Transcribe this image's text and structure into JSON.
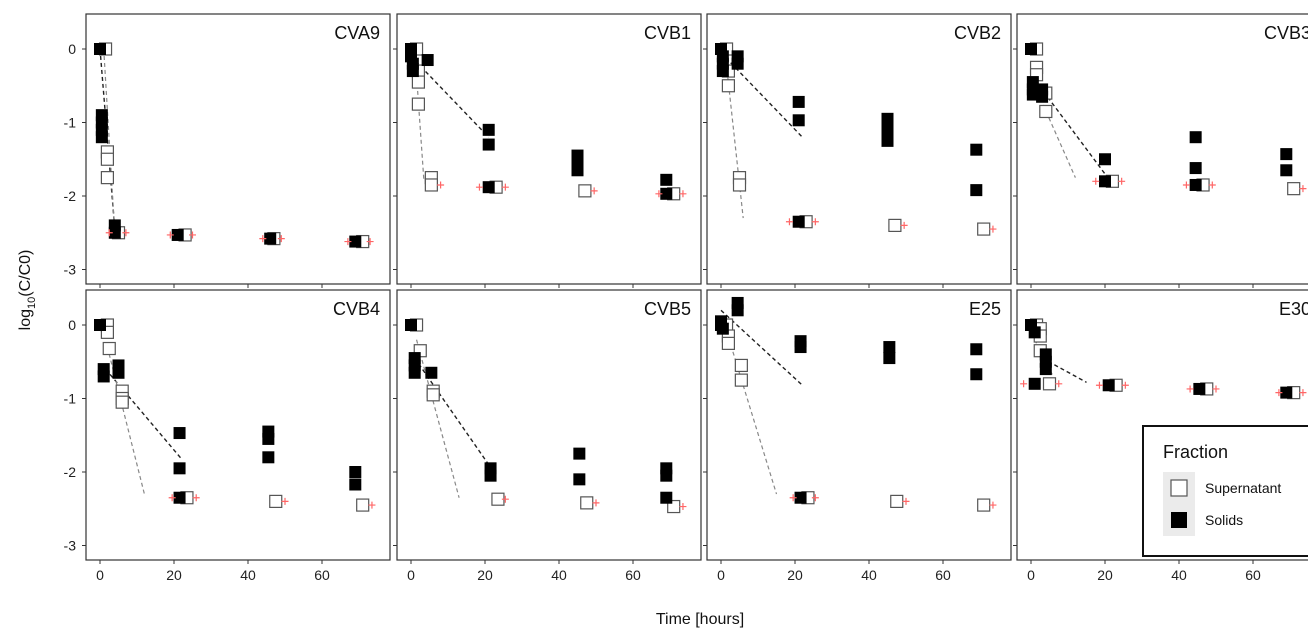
{
  "chart_data": {
    "type": "scatter",
    "xlabel": "Time [hours]",
    "ylabel": "log10(C/C0)",
    "ylabel_base": "log",
    "ylabel_sub": "10",
    "ylabel_rest": "(C/C0)",
    "xlim": [
      -4,
      72
    ],
    "ylim": [
      -3.2,
      0.3
    ],
    "x_ticks": [
      0,
      20,
      40,
      60
    ],
    "y_ticks": [
      0,
      -1,
      -2,
      -3
    ],
    "grid": false,
    "legend": {
      "title": "Fraction",
      "placement": "bottom-right",
      "entries": [
        {
          "name": "Supernatant",
          "fill": "#ffffff"
        },
        {
          "name": "Solids",
          "fill": "#000000"
        }
      ]
    },
    "colors": {
      "solids": "#000000",
      "supernatant_stroke": "#555555",
      "detection_limit_mark": "#ff6666",
      "fit_solids": "#222222",
      "fit_supernatant": "#888888",
      "panel_border": "#333333"
    },
    "panels": [
      {
        "title": "CVA9",
        "solids": [
          [
            0,
            0
          ],
          [
            0.5,
            -0.9
          ],
          [
            0.5,
            -1.0
          ],
          [
            0.5,
            -1.1
          ],
          [
            0.5,
            -1.2
          ],
          [
            4,
            -2.4
          ],
          [
            4,
            -2.5
          ],
          [
            21,
            -2.53
          ],
          [
            46,
            -2.58
          ],
          [
            69,
            -2.62
          ]
        ],
        "supernatant": [
          [
            1.5,
            0
          ],
          [
            2,
            -1.4
          ],
          [
            2,
            -1.5
          ],
          [
            2,
            -1.75
          ],
          [
            5,
            -2.5
          ],
          [
            23,
            -2.53
          ],
          [
            47,
            -2.58
          ],
          [
            71,
            -2.62
          ]
        ],
        "dl_marks": [
          [
            2.5,
            -2.5
          ],
          [
            7,
            -2.5
          ],
          [
            19,
            -2.53
          ],
          [
            25,
            -2.53
          ],
          [
            44,
            -2.58
          ],
          [
            49,
            -2.58
          ],
          [
            67,
            -2.62
          ],
          [
            73,
            -2.62
          ]
        ],
        "fit_solids": [
          [
            0,
            0
          ],
          [
            4,
            -2.45
          ]
        ],
        "fit_supernatant": [
          [
            1,
            0
          ],
          [
            4,
            -2.5
          ]
        ]
      },
      {
        "title": "CVB1",
        "solids": [
          [
            0,
            0
          ],
          [
            0,
            -0.1
          ],
          [
            0.5,
            -0.2
          ],
          [
            0.5,
            -0.3
          ],
          [
            4.5,
            -0.15
          ],
          [
            21,
            -1.1
          ],
          [
            21,
            -1.3
          ],
          [
            21,
            -1.88
          ],
          [
            45,
            -1.45
          ],
          [
            45,
            -1.55
          ],
          [
            45,
            -1.65
          ],
          [
            69,
            -1.78
          ],
          [
            69,
            -1.97
          ]
        ],
        "supernatant": [
          [
            1.5,
            0
          ],
          [
            2,
            -0.3
          ],
          [
            2,
            -0.45
          ],
          [
            2,
            -0.75
          ],
          [
            5.5,
            -1.75
          ],
          [
            5.5,
            -1.85
          ],
          [
            23,
            -1.88
          ],
          [
            47,
            -1.93
          ],
          [
            71,
            -1.97
          ]
        ],
        "dl_marks": [
          [
            8,
            -1.85
          ],
          [
            18.5,
            -1.88
          ],
          [
            25.5,
            -1.88
          ],
          [
            49.5,
            -1.93
          ],
          [
            67,
            -1.97
          ],
          [
            73.5,
            -1.97
          ]
        ],
        "fit_solids": [
          [
            0,
            -0.1
          ],
          [
            21,
            -1.2
          ]
        ],
        "fit_supernatant": [
          [
            1,
            0
          ],
          [
            3.5,
            -1.8
          ]
        ]
      },
      {
        "title": "CVB2",
        "solids": [
          [
            0,
            0
          ],
          [
            0.5,
            -0.1
          ],
          [
            0.5,
            -0.2
          ],
          [
            0.5,
            -0.3
          ],
          [
            4.5,
            -0.1
          ],
          [
            4.5,
            -0.2
          ],
          [
            21,
            -0.72
          ],
          [
            21,
            -0.97
          ],
          [
            21,
            -2.35
          ],
          [
            45,
            -0.95
          ],
          [
            45,
            -1.05
          ],
          [
            45,
            -1.15
          ],
          [
            45,
            -1.25
          ],
          [
            69,
            -1.37
          ],
          [
            69,
            -1.92
          ]
        ],
        "supernatant": [
          [
            1.5,
            0
          ],
          [
            2,
            -0.3
          ],
          [
            2,
            -0.5
          ],
          [
            5,
            -1.75
          ],
          [
            5,
            -1.85
          ],
          [
            23,
            -2.35
          ],
          [
            47,
            -2.4
          ],
          [
            71,
            -2.45
          ]
        ],
        "dl_marks": [
          [
            18.5,
            -2.35
          ],
          [
            25.5,
            -2.35
          ],
          [
            49.5,
            -2.4
          ],
          [
            73.5,
            -2.45
          ]
        ],
        "fit_solids": [
          [
            0,
            -0.05
          ],
          [
            22,
            -1.2
          ]
        ],
        "fit_supernatant": [
          [
            1,
            0
          ],
          [
            6,
            -2.3
          ]
        ]
      },
      {
        "title": "CVB3",
        "solids": [
          [
            0,
            0
          ],
          [
            0.5,
            -0.45
          ],
          [
            0.5,
            -0.55
          ],
          [
            0.5,
            -0.62
          ],
          [
            3,
            -0.55
          ],
          [
            3,
            -0.65
          ],
          [
            20,
            -1.5
          ],
          [
            20,
            -1.8
          ],
          [
            44.5,
            -1.2
          ],
          [
            44.5,
            -1.62
          ],
          [
            44.5,
            -1.85
          ],
          [
            69,
            -1.43
          ],
          [
            69,
            -1.65
          ]
        ],
        "supernatant": [
          [
            1.5,
            0
          ],
          [
            1.5,
            -0.25
          ],
          [
            1.5,
            -0.35
          ],
          [
            1.5,
            -0.6
          ],
          [
            4,
            -0.6
          ],
          [
            4,
            -0.85
          ],
          [
            22,
            -1.8
          ],
          [
            46.5,
            -1.85
          ],
          [
            71,
            -1.9
          ]
        ],
        "dl_marks": [
          [
            17.5,
            -1.8
          ],
          [
            24.5,
            -1.8
          ],
          [
            42,
            -1.85
          ],
          [
            49,
            -1.85
          ],
          [
            73.5,
            -1.9
          ]
        ],
        "fit_solids": [
          [
            0,
            -0.35
          ],
          [
            20,
            -1.7
          ]
        ],
        "fit_supernatant": [
          [
            1,
            -0.5
          ],
          [
            12,
            -1.75
          ]
        ]
      },
      {
        "title": "CVB4",
        "solids": [
          [
            0,
            0
          ],
          [
            1,
            -0.6
          ],
          [
            1,
            -0.7
          ],
          [
            5,
            -0.55
          ],
          [
            5,
            -0.65
          ],
          [
            21.5,
            -1.47
          ],
          [
            21.5,
            -1.95
          ],
          [
            21.5,
            -2.35
          ],
          [
            45.5,
            -1.45
          ],
          [
            45.5,
            -1.55
          ],
          [
            45.5,
            -1.8
          ],
          [
            69,
            -2.0
          ],
          [
            69,
            -2.17
          ]
        ],
        "supernatant": [
          [
            2,
            0
          ],
          [
            2,
            -0.1
          ],
          [
            2.5,
            -0.32
          ],
          [
            6,
            -0.9
          ],
          [
            6,
            -1.0
          ],
          [
            6,
            -1.05
          ],
          [
            23.5,
            -2.35
          ],
          [
            47.5,
            -2.4
          ],
          [
            71,
            -2.45
          ]
        ],
        "dl_marks": [
          [
            19.5,
            -2.35
          ],
          [
            26,
            -2.35
          ],
          [
            50,
            -2.4
          ],
          [
            73.5,
            -2.45
          ]
        ],
        "fit_solids": [
          [
            1.5,
            -0.6
          ],
          [
            22,
            -1.82
          ]
        ],
        "fit_supernatant": [
          [
            2,
            -0.3
          ],
          [
            12,
            -2.3
          ]
        ]
      },
      {
        "title": "CVB5",
        "solids": [
          [
            0,
            0
          ],
          [
            1,
            -0.45
          ],
          [
            1,
            -0.55
          ],
          [
            1,
            -0.65
          ],
          [
            5.5,
            -0.65
          ],
          [
            21.5,
            -1.95
          ],
          [
            21.5,
            -2.05
          ],
          [
            45.5,
            -1.75
          ],
          [
            45.5,
            -2.1
          ],
          [
            69,
            -1.95
          ],
          [
            69,
            -2.05
          ],
          [
            69,
            -2.35
          ]
        ],
        "supernatant": [
          [
            1.5,
            0
          ],
          [
            2.5,
            -0.35
          ],
          [
            6,
            -0.9
          ],
          [
            6,
            -0.95
          ],
          [
            23.5,
            -2.37
          ],
          [
            47.5,
            -2.42
          ],
          [
            71,
            -2.47
          ]
        ],
        "dl_marks": [
          [
            25.5,
            -2.37
          ],
          [
            50,
            -2.42
          ],
          [
            73.5,
            -2.47
          ]
        ],
        "fit_solids": [
          [
            1,
            -0.45
          ],
          [
            21,
            -1.9
          ]
        ],
        "fit_supernatant": [
          [
            1.5,
            -0.2
          ],
          [
            13,
            -2.35
          ]
        ]
      },
      {
        "title": "E25",
        "solids": [
          [
            0,
            0
          ],
          [
            0,
            0.05
          ],
          [
            0.5,
            -0.05
          ],
          [
            4.5,
            0.2
          ],
          [
            4.5,
            0.3
          ],
          [
            21.5,
            -0.22
          ],
          [
            21.5,
            -0.3
          ],
          [
            21.5,
            -2.35
          ],
          [
            45.5,
            -0.3
          ],
          [
            45.5,
            -0.45
          ],
          [
            69,
            -0.33
          ],
          [
            69,
            -0.67
          ]
        ],
        "supernatant": [
          [
            1.5,
            0
          ],
          [
            2,
            -0.15
          ],
          [
            2,
            -0.25
          ],
          [
            5.5,
            -0.55
          ],
          [
            5.5,
            -0.75
          ],
          [
            23.5,
            -2.35
          ],
          [
            47.5,
            -2.4
          ],
          [
            71,
            -2.45
          ]
        ],
        "dl_marks": [
          [
            19.5,
            -2.35
          ],
          [
            25.5,
            -2.35
          ],
          [
            50,
            -2.4
          ],
          [
            73.5,
            -2.45
          ]
        ],
        "fit_solids": [
          [
            0,
            0.2
          ],
          [
            22,
            -0.82
          ]
        ],
        "fit_supernatant": [
          [
            1,
            0
          ],
          [
            15,
            -2.3
          ]
        ]
      },
      {
        "title": "E30",
        "solids": [
          [
            0,
            0
          ],
          [
            1,
            -0.1
          ],
          [
            1,
            -0.8
          ],
          [
            4,
            -0.4
          ],
          [
            4,
            -0.5
          ],
          [
            4,
            -0.6
          ],
          [
            21,
            -0.82
          ],
          [
            45.5,
            -0.87
          ],
          [
            69,
            -0.92
          ]
        ],
        "supernatant": [
          [
            1.5,
            0
          ],
          [
            2.5,
            -0.05
          ],
          [
            2.5,
            -0.15
          ],
          [
            2.5,
            -0.35
          ],
          [
            5,
            -0.8
          ],
          [
            23,
            -0.82
          ],
          [
            47.5,
            -0.87
          ],
          [
            71,
            -0.92
          ]
        ],
        "dl_marks": [
          [
            -2,
            -0.8
          ],
          [
            7.5,
            -0.8
          ],
          [
            18.5,
            -0.82
          ],
          [
            25.5,
            -0.82
          ],
          [
            43,
            -0.87
          ],
          [
            50,
            -0.87
          ],
          [
            67,
            -0.92
          ],
          [
            73.5,
            -0.92
          ]
        ],
        "fit_solids": [
          [
            3,
            -0.45
          ],
          [
            15,
            -0.78
          ]
        ],
        "fit_supernatant": [
          [
            1,
            -0.2
          ],
          [
            6,
            -0.7
          ]
        ]
      }
    ]
  }
}
